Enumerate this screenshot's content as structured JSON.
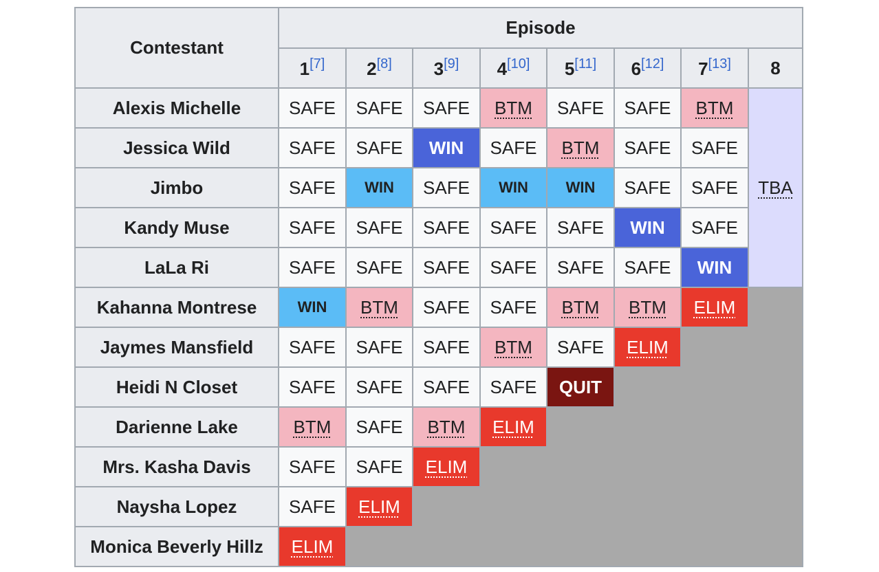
{
  "table": {
    "header": {
      "contestant": "Contestant",
      "episode": "Episode",
      "episodes": [
        {
          "number": "1",
          "ref": "[7]"
        },
        {
          "number": "2",
          "ref": "[8]"
        },
        {
          "number": "3",
          "ref": "[9]"
        },
        {
          "number": "4",
          "ref": "[10]"
        },
        {
          "number": "5",
          "ref": "[11]"
        },
        {
          "number": "6",
          "ref": "[12]"
        },
        {
          "number": "7",
          "ref": "[13]"
        },
        {
          "number": "8"
        }
      ]
    },
    "final": {
      "text": "TBA",
      "color": "#dcdcfd",
      "abbr": true,
      "rows": 5
    },
    "empty_color": "#a9a9a9",
    "rows": [
      {
        "contestant": "Alexis Michelle",
        "results": [
          {
            "text": "SAFE",
            "color": "#f8f9fa"
          },
          {
            "text": "SAFE",
            "color": "#f8f9fa"
          },
          {
            "text": "SAFE",
            "color": "#f8f9fa"
          },
          {
            "text": "BTM",
            "color": "#f4b6c0",
            "abbr": true
          },
          {
            "text": "SAFE",
            "color": "#f8f9fa"
          },
          {
            "text": "SAFE",
            "color": "#f8f9fa"
          },
          {
            "text": "BTM",
            "color": "#f4b6c0",
            "abbr": true
          }
        ]
      },
      {
        "contestant": "Jessica Wild",
        "results": [
          {
            "text": "SAFE",
            "color": "#f8f9fa"
          },
          {
            "text": "SAFE",
            "color": "#f8f9fa"
          },
          {
            "text": "WIN",
            "color": "#4a64d9"
          },
          {
            "text": "SAFE",
            "color": "#f8f9fa"
          },
          {
            "text": "BTM",
            "color": "#f4b6c0",
            "abbr": true
          },
          {
            "text": "SAFE",
            "color": "#f8f9fa"
          },
          {
            "text": "SAFE",
            "color": "#f8f9fa"
          }
        ]
      },
      {
        "contestant": "Jimbo",
        "results": [
          {
            "text": "SAFE",
            "color": "#f8f9fa"
          },
          {
            "text": "WIN",
            "color": "#5bbcf6"
          },
          {
            "text": "SAFE",
            "color": "#f8f9fa"
          },
          {
            "text": "WIN",
            "color": "#5bbcf6"
          },
          {
            "text": "WIN",
            "color": "#5bbcf6"
          },
          {
            "text": "SAFE",
            "color": "#f8f9fa"
          },
          {
            "text": "SAFE",
            "color": "#f8f9fa"
          }
        ]
      },
      {
        "contestant": "Kandy Muse",
        "results": [
          {
            "text": "SAFE",
            "color": "#f8f9fa"
          },
          {
            "text": "SAFE",
            "color": "#f8f9fa"
          },
          {
            "text": "SAFE",
            "color": "#f8f9fa"
          },
          {
            "text": "SAFE",
            "color": "#f8f9fa"
          },
          {
            "text": "SAFE",
            "color": "#f8f9fa"
          },
          {
            "text": "WIN",
            "color": "#4a64d9"
          },
          {
            "text": "SAFE",
            "color": "#f8f9fa"
          }
        ]
      },
      {
        "contestant": "LaLa Ri",
        "results": [
          {
            "text": "SAFE",
            "color": "#f8f9fa"
          },
          {
            "text": "SAFE",
            "color": "#f8f9fa"
          },
          {
            "text": "SAFE",
            "color": "#f8f9fa"
          },
          {
            "text": "SAFE",
            "color": "#f8f9fa"
          },
          {
            "text": "SAFE",
            "color": "#f8f9fa"
          },
          {
            "text": "SAFE",
            "color": "#f8f9fa"
          },
          {
            "text": "WIN",
            "color": "#4a64d9"
          }
        ]
      },
      {
        "contestant": "Kahanna Montrese",
        "results": [
          {
            "text": "WIN",
            "color": "#5bbcf6"
          },
          {
            "text": "BTM",
            "color": "#f4b6c0",
            "abbr": true
          },
          {
            "text": "SAFE",
            "color": "#f8f9fa"
          },
          {
            "text": "SAFE",
            "color": "#f8f9fa"
          },
          {
            "text": "BTM",
            "color": "#f4b6c0",
            "abbr": true
          },
          {
            "text": "BTM",
            "color": "#f4b6c0",
            "abbr": true
          },
          {
            "text": "ELIM",
            "color": "#e8392c",
            "abbr": true
          }
        ]
      },
      {
        "contestant": "Jaymes Mansfield",
        "results": [
          {
            "text": "SAFE",
            "color": "#f8f9fa"
          },
          {
            "text": "SAFE",
            "color": "#f8f9fa"
          },
          {
            "text": "SAFE",
            "color": "#f8f9fa"
          },
          {
            "text": "BTM",
            "color": "#f4b6c0",
            "abbr": true
          },
          {
            "text": "SAFE",
            "color": "#f8f9fa"
          },
          {
            "text": "ELIM",
            "color": "#e8392c",
            "abbr": true
          }
        ]
      },
      {
        "contestant": "Heidi N Closet",
        "results": [
          {
            "text": "SAFE",
            "color": "#f8f9fa"
          },
          {
            "text": "SAFE",
            "color": "#f8f9fa"
          },
          {
            "text": "SAFE",
            "color": "#f8f9fa"
          },
          {
            "text": "SAFE",
            "color": "#f8f9fa"
          },
          {
            "text": "QUIT",
            "color": "#7a1511"
          }
        ]
      },
      {
        "contestant": "Darienne Lake",
        "results": [
          {
            "text": "BTM",
            "color": "#f4b6c0",
            "abbr": true
          },
          {
            "text": "SAFE",
            "color": "#f8f9fa"
          },
          {
            "text": "BTM",
            "color": "#f4b6c0",
            "abbr": true
          },
          {
            "text": "ELIM",
            "color": "#e8392c",
            "abbr": true
          }
        ]
      },
      {
        "contestant": "Mrs. Kasha Davis",
        "results": [
          {
            "text": "SAFE",
            "color": "#f8f9fa"
          },
          {
            "text": "SAFE",
            "color": "#f8f9fa"
          },
          {
            "text": "ELIM",
            "color": "#e8392c",
            "abbr": true
          }
        ]
      },
      {
        "contestant": "Naysha Lopez",
        "results": [
          {
            "text": "SAFE",
            "color": "#f8f9fa"
          },
          {
            "text": "ELIM",
            "color": "#e8392c",
            "abbr": true
          }
        ]
      },
      {
        "contestant": "Monica Beverly Hillz",
        "results": [
          {
            "text": "ELIM",
            "color": "#e8392c",
            "abbr": true
          }
        ]
      }
    ]
  }
}
